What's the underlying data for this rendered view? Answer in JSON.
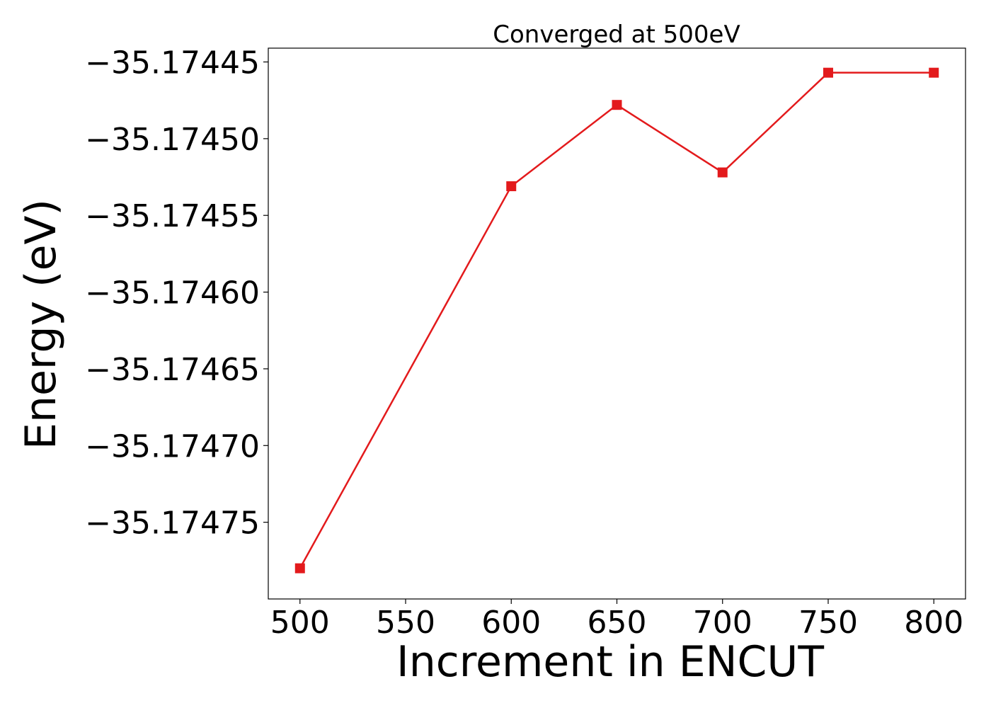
{
  "chart_data": {
    "type": "line",
    "title": "Converged at 500eV",
    "xlabel": "Increment in ENCUT",
    "ylabel": "Energy (eV)",
    "x": [
      500,
      600,
      650,
      700,
      750,
      800
    ],
    "series": [
      {
        "values": [
          -35.17478,
          -35.174531,
          -35.174478,
          -35.174522,
          -35.174457,
          -35.174457
        ],
        "color": "#e31a1c",
        "marker": "square"
      }
    ],
    "xlim": [
      485,
      815
    ],
    "ylim": [
      -35.1748,
      -35.174441
    ],
    "xticks": [
      500,
      550,
      600,
      650,
      700,
      750,
      800
    ],
    "xtick_labels": [
      "500",
      "550",
      "600",
      "650",
      "700",
      "750",
      "800"
    ],
    "yticks": [
      -35.17475,
      -35.1747,
      -35.17465,
      -35.1746,
      -35.17455,
      -35.1745,
      -35.17445
    ],
    "ytick_labels": [
      "−35.17475",
      "−35.17470",
      "−35.17465",
      "−35.17460",
      "−35.17455",
      "−35.17450",
      "−35.17445"
    ],
    "grid": false,
    "legend": "none"
  }
}
